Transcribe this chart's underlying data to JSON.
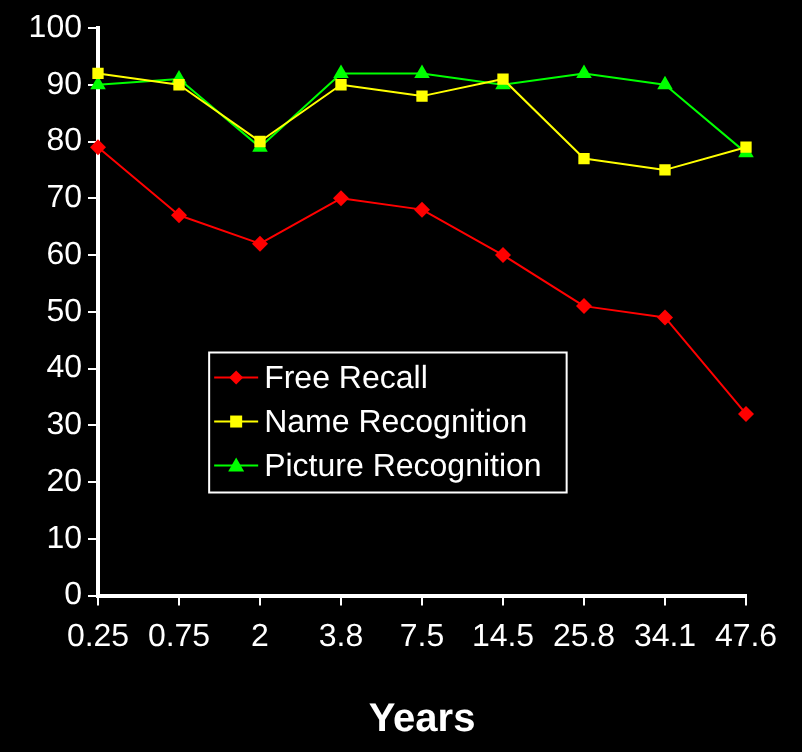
{
  "chart_data": {
    "type": "line",
    "xlabel": "Years",
    "categories": [
      "0.25",
      "0.75",
      "2",
      "3.8",
      "7.5",
      "14.5",
      "25.8",
      "34.1",
      "47.6"
    ],
    "series": [
      {
        "name": "Free Recall",
        "color": "#ff0000",
        "marker": "diamond",
        "values": [
          79,
          67,
          62,
          70,
          68,
          60,
          51,
          49,
          32
        ]
      },
      {
        "name": "Name Recognition",
        "color": "#ffff00",
        "marker": "square",
        "values": [
          92,
          90,
          80,
          90,
          88,
          91,
          77,
          75,
          79
        ]
      },
      {
        "name": "Picture Recognition",
        "color": "#00ff00",
        "marker": "triangle",
        "values": [
          90,
          91,
          79,
          92,
          92,
          90,
          92,
          90,
          78
        ]
      }
    ],
    "ylim": [
      0,
      100
    ],
    "yticks": [
      0,
      10,
      20,
      30,
      40,
      50,
      60,
      70,
      80,
      90,
      100
    ],
    "grid": false,
    "legend": "center"
  }
}
